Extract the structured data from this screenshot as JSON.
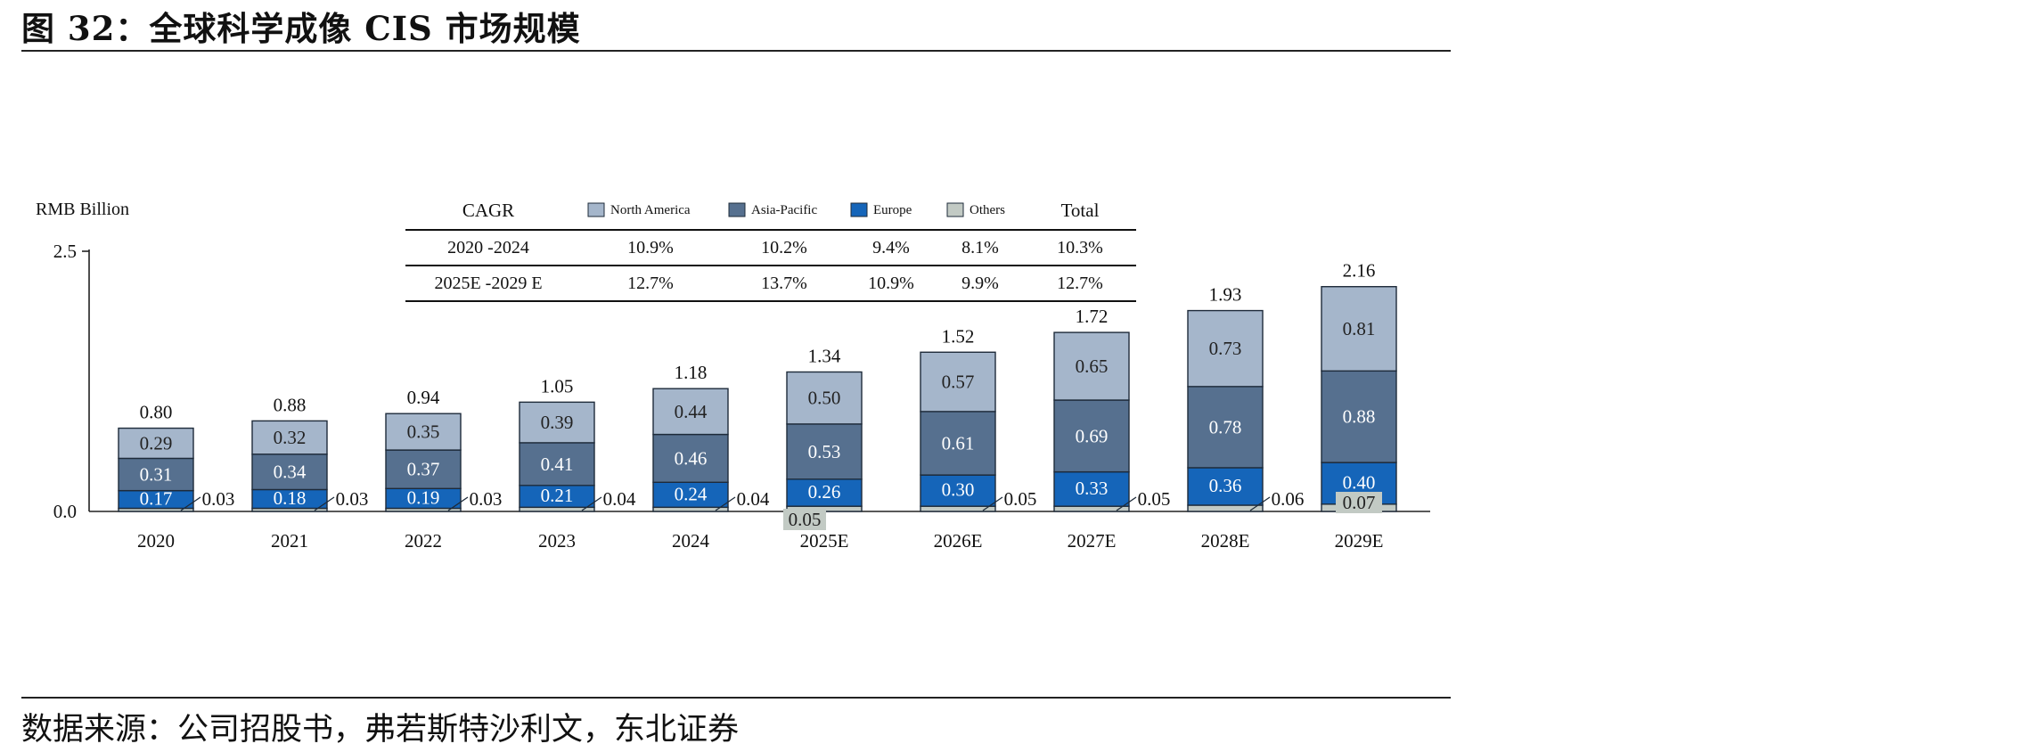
{
  "figure": {
    "title": "图 32：全球科学成像 CIS 市场规模",
    "source": "数据来源：公司招股书，弗若斯特沙利文，东北证券"
  },
  "colors": {
    "north_america": "#a5b6cb",
    "asia_pacific": "#56708f",
    "europe": "#1565b9",
    "others": "#c2cac4",
    "segment_label_light": "#ffffff",
    "segment_label_dark": "#222222"
  },
  "chart_data": {
    "type": "bar",
    "stacked": true,
    "ylabel": "RMB Billion",
    "ylim": [
      0,
      2.5
    ],
    "yticks": [
      "0.0",
      "2.5"
    ],
    "categories": [
      "2020",
      "2021",
      "2022",
      "2023",
      "2024",
      "2025E",
      "2026E",
      "2027E",
      "2028E",
      "2029E"
    ],
    "series": [
      {
        "name": "Others",
        "key": "others",
        "values": [
          0.03,
          0.03,
          0.03,
          0.04,
          0.04,
          0.05,
          0.05,
          0.05,
          0.06,
          0.07
        ],
        "labels": [
          "0.03",
          "0.03",
          "0.03",
          "0.04",
          "0.04",
          "0.05",
          "0.05",
          "0.05",
          "0.06",
          "0.07"
        ]
      },
      {
        "name": "Europe",
        "key": "europe",
        "values": [
          0.17,
          0.18,
          0.19,
          0.21,
          0.24,
          0.26,
          0.3,
          0.33,
          0.36,
          0.4
        ],
        "labels": [
          "0.17",
          "0.18",
          "0.19",
          "0.21",
          "0.24",
          "0.26",
          "0.30",
          "0.33",
          "0.36",
          "0.40"
        ]
      },
      {
        "name": "Asia-Pacific",
        "key": "asia_pacific",
        "values": [
          0.31,
          0.34,
          0.37,
          0.41,
          0.46,
          0.53,
          0.61,
          0.69,
          0.78,
          0.88
        ],
        "labels": [
          "0.31",
          "0.34",
          "0.37",
          "0.41",
          "0.46",
          "0.53",
          "0.61",
          "0.69",
          "0.78",
          "0.88"
        ]
      },
      {
        "name": "North America",
        "key": "north_america",
        "values": [
          0.29,
          0.32,
          0.35,
          0.39,
          0.44,
          0.5,
          0.57,
          0.65,
          0.73,
          0.81
        ],
        "labels": [
          "0.29",
          "0.32",
          "0.35",
          "0.39",
          "0.44",
          "0.50",
          "0.57",
          "0.65",
          "0.73",
          "0.81"
        ]
      }
    ],
    "totals": [
      0.8,
      0.88,
      0.94,
      1.05,
      1.18,
      1.34,
      1.52,
      1.72,
      1.93,
      2.16
    ],
    "total_labels": [
      "0.80",
      "0.88",
      "0.94",
      "1.05",
      "1.18",
      "1.34",
      "1.52",
      "1.72",
      "1.93",
      "2.16"
    ],
    "legend": [
      "North America",
      "Asia-Pacific",
      "Europe",
      "Others"
    ],
    "cagr_table": {
      "headers": [
        "CAGR",
        "North America",
        "Asia-Pacific",
        "Europe",
        "Others",
        "Total"
      ],
      "rows": [
        [
          "2020 -2024",
          "10.9%",
          "10.2%",
          "9.4%",
          "8.1%",
          "10.3%"
        ],
        [
          "2025E -2029 E",
          "12.7%",
          "13.7%",
          "10.9%",
          "9.9%",
          "12.7%"
        ]
      ]
    }
  }
}
